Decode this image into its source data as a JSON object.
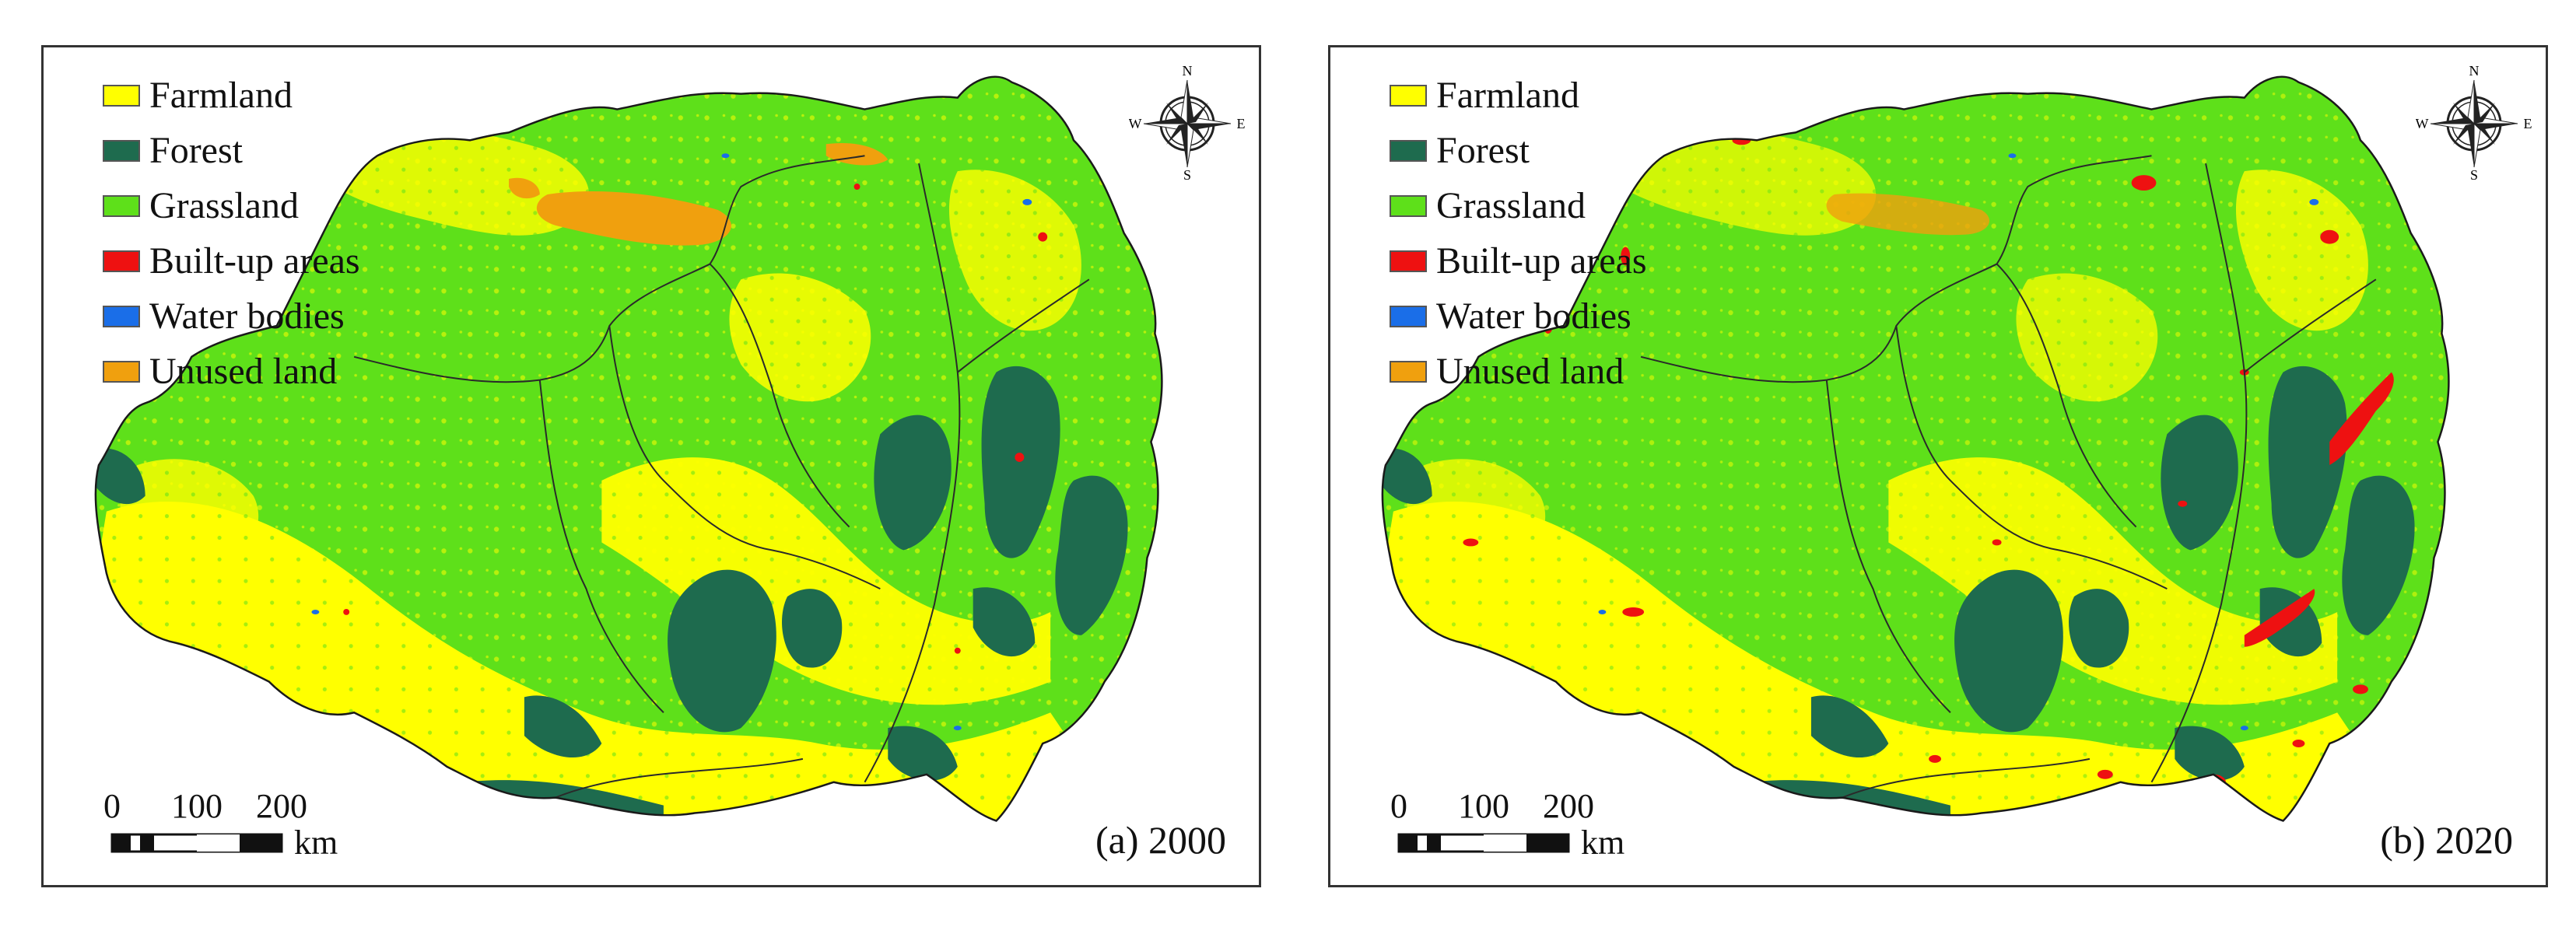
{
  "legend": [
    {
      "label": "Farmland",
      "color": "#ffff00"
    },
    {
      "label": "Forest",
      "color": "#1e6b4e"
    },
    {
      "label": "Grassland",
      "color": "#5ee01a"
    },
    {
      "label": "Built-up areas",
      "color": "#ee1111"
    },
    {
      "label": "Water bodies",
      "color": "#1a6ee8"
    },
    {
      "label": "Unused land",
      "color": "#f0a00e"
    }
  ],
  "compass": {
    "n": "N",
    "s": "S",
    "e": "E",
    "w": "W"
  },
  "scale": {
    "ticks": [
      "0",
      "100",
      "200"
    ],
    "unit": "km"
  },
  "panels": [
    {
      "caption": "(a) 2000",
      "year": 2000
    },
    {
      "caption": "(b) 2020",
      "year": 2020
    }
  ]
}
